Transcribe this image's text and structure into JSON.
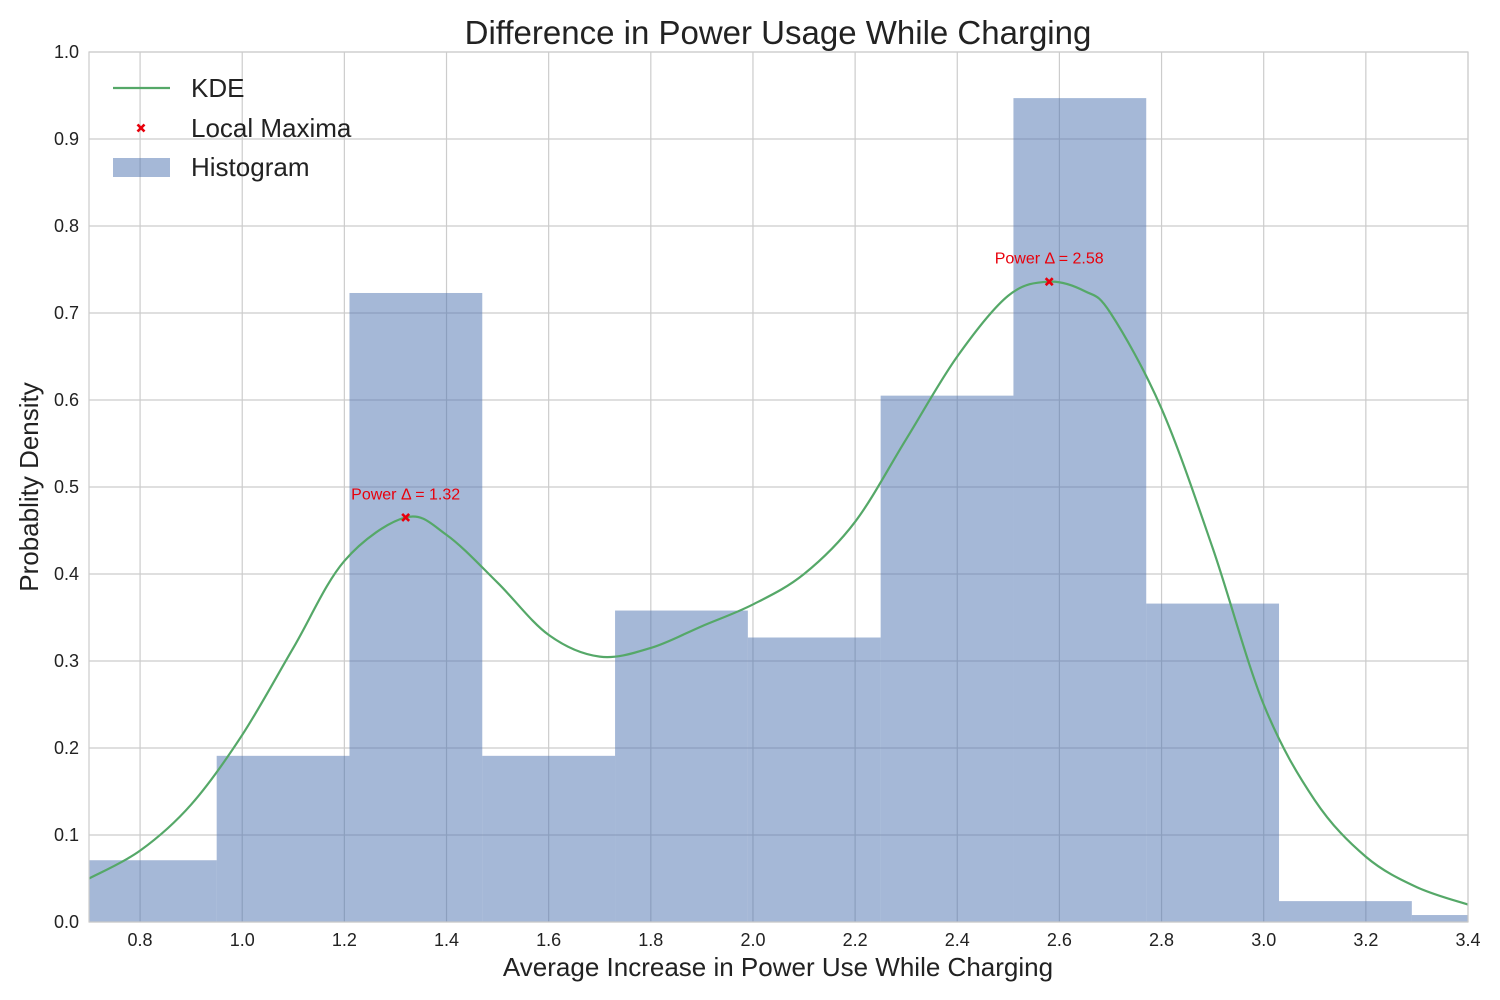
{
  "chart_data": {
    "type": "bar",
    "title": "Difference in Power Usage While Charging",
    "xlabel": "Average Increase in Power Use While Charging",
    "ylabel": "Probablity Density",
    "xlim": [
      0.7,
      3.4
    ],
    "ylim": [
      0.0,
      1.0
    ],
    "grid": true,
    "legend_position": "upper-left",
    "x_ticks": [
      "0.8",
      "1.0",
      "1.2",
      "1.4",
      "1.6",
      "1.8",
      "2.0",
      "2.2",
      "2.4",
      "2.6",
      "2.8",
      "3.0",
      "3.2",
      "3.4"
    ],
    "y_ticks": [
      "0.0",
      "0.1",
      "0.2",
      "0.3",
      "0.4",
      "0.5",
      "0.6",
      "0.7",
      "0.8",
      "0.9",
      "1.0"
    ],
    "colors": {
      "histogram": "#4c72b0",
      "kde": "#55a868",
      "maxima": "#e8000b",
      "grid": "#cccccc"
    },
    "histogram": {
      "name": "Histogram",
      "bins": [
        {
          "x0": 0.7,
          "x1": 0.95,
          "density": 0.071
        },
        {
          "x0": 0.95,
          "x1": 1.21,
          "density": 0.191
        },
        {
          "x0": 1.21,
          "x1": 1.47,
          "density": 0.723
        },
        {
          "x0": 1.47,
          "x1": 1.73,
          "density": 0.191
        },
        {
          "x0": 1.73,
          "x1": 1.99,
          "density": 0.358
        },
        {
          "x0": 1.99,
          "x1": 2.25,
          "density": 0.327
        },
        {
          "x0": 2.25,
          "x1": 2.51,
          "density": 0.605
        },
        {
          "x0": 2.51,
          "x1": 2.77,
          "density": 0.947
        },
        {
          "x0": 2.77,
          "x1": 3.03,
          "density": 0.366
        },
        {
          "x0": 3.03,
          "x1": 3.29,
          "density": 0.024
        },
        {
          "x0": 3.29,
          "x1": 3.4,
          "density": 0.008
        }
      ]
    },
    "kde": {
      "name": "KDE",
      "x": [
        0.7,
        0.8,
        0.9,
        1.0,
        1.1,
        1.2,
        1.32,
        1.4,
        1.5,
        1.6,
        1.7,
        1.8,
        1.9,
        2.0,
        2.1,
        2.2,
        2.3,
        2.4,
        2.5,
        2.58,
        2.65,
        2.7,
        2.8,
        2.9,
        3.0,
        3.1,
        3.2,
        3.3,
        3.4
      ],
      "y": [
        0.05,
        0.082,
        0.135,
        0.215,
        0.315,
        0.415,
        0.465,
        0.445,
        0.39,
        0.33,
        0.305,
        0.315,
        0.34,
        0.365,
        0.4,
        0.46,
        0.555,
        0.65,
        0.72,
        0.736,
        0.725,
        0.7,
        0.59,
        0.43,
        0.25,
        0.14,
        0.075,
        0.04,
        0.02
      ]
    },
    "local_maxima": {
      "name": "Local Maxima",
      "points": [
        {
          "x": 1.32,
          "y": 0.465,
          "label": "Power Δ = 1.32"
        },
        {
          "x": 2.58,
          "y": 0.736,
          "label": "Power Δ = 2.58"
        }
      ]
    }
  }
}
